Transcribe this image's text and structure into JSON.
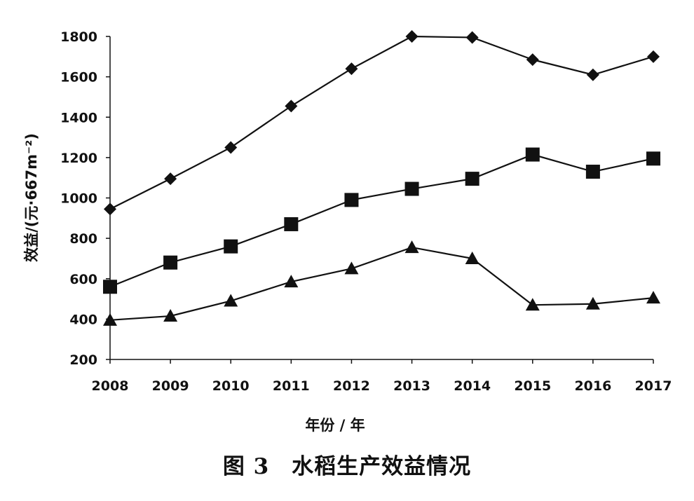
{
  "chart_data": {
    "type": "line",
    "caption": "图 3　水稻生产效益情况",
    "xlabel": "年份 / 年",
    "ylabel": "效益/(元·667m⁻²)",
    "categories": [
      "2008",
      "2009",
      "2010",
      "2011",
      "2012",
      "2013",
      "2014",
      "2015",
      "2016",
      "2017"
    ],
    "ylim": [
      200,
      1800
    ],
    "yticks": [
      200,
      400,
      600,
      800,
      1000,
      1200,
      1400,
      1600,
      1800
    ],
    "series": [
      {
        "marker": "diamond",
        "values": [
          945,
          1095,
          1250,
          1455,
          1640,
          1800,
          1795,
          1685,
          1610,
          1700
        ]
      },
      {
        "marker": "square",
        "values": [
          560,
          680,
          760,
          870,
          990,
          1045,
          1095,
          1215,
          1130,
          1195
        ]
      },
      {
        "marker": "triangle",
        "values": [
          395,
          415,
          490,
          585,
          650,
          755,
          700,
          470,
          475,
          505
        ]
      }
    ],
    "grid": false,
    "legend": "none",
    "color": "#111111"
  }
}
